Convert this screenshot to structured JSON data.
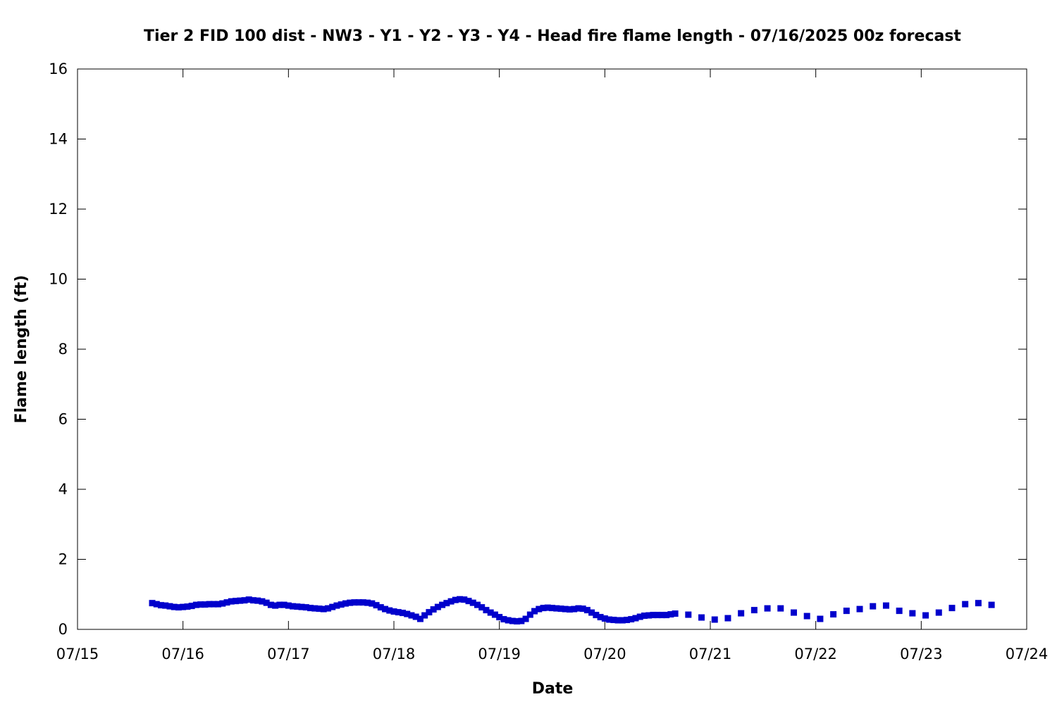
{
  "chart_data": {
    "type": "scatter",
    "title": "Tier 2 FID 100 dist - NW3 - Y1 - Y2 - Y3 - Y4 - Head fire flame length - 07/16/2025 00z forecast",
    "xlabel": "Date",
    "ylabel": "Flame length (ft)",
    "xlim": [
      "07/15",
      "07/24"
    ],
    "ylim": [
      0,
      16
    ],
    "x_ticks": [
      "07/15",
      "07/16",
      "07/17",
      "07/18",
      "07/19",
      "07/20",
      "07/21",
      "07/22",
      "07/23",
      "07/24"
    ],
    "y_ticks": [
      0,
      2,
      4,
      6,
      8,
      10,
      12,
      14,
      16
    ],
    "grid": false,
    "legend": "none",
    "marker_color": "#0000cc",
    "series": [
      {
        "points": [
          [
            "07/15 17:00",
            0.75
          ],
          [
            "07/15 18:00",
            0.72
          ],
          [
            "07/15 19:00",
            0.69
          ],
          [
            "07/15 20:00",
            0.68
          ],
          [
            "07/15 21:00",
            0.66
          ],
          [
            "07/15 22:00",
            0.64
          ],
          [
            "07/15 23:00",
            0.63
          ],
          [
            "07/16 00:00",
            0.64
          ],
          [
            "07/16 01:00",
            0.65
          ],
          [
            "07/16 02:00",
            0.67
          ],
          [
            "07/16 03:00",
            0.7
          ],
          [
            "07/16 04:00",
            0.71
          ],
          [
            "07/16 05:00",
            0.71
          ],
          [
            "07/16 06:00",
            0.72
          ],
          [
            "07/16 07:00",
            0.72
          ],
          [
            "07/16 08:00",
            0.72
          ],
          [
            "07/16 09:00",
            0.74
          ],
          [
            "07/16 10:00",
            0.77
          ],
          [
            "07/16 11:00",
            0.8
          ],
          [
            "07/16 12:00",
            0.81
          ],
          [
            "07/16 13:00",
            0.82
          ],
          [
            "07/16 14:00",
            0.83
          ],
          [
            "07/16 15:00",
            0.85
          ],
          [
            "07/16 16:00",
            0.83
          ],
          [
            "07/16 17:00",
            0.82
          ],
          [
            "07/16 18:00",
            0.8
          ],
          [
            "07/16 19:00",
            0.76
          ],
          [
            "07/16 20:00",
            0.7
          ],
          [
            "07/16 21:00",
            0.68
          ],
          [
            "07/16 22:00",
            0.7
          ],
          [
            "07/16 23:00",
            0.7
          ],
          [
            "07/17 00:00",
            0.68
          ],
          [
            "07/17 01:00",
            0.66
          ],
          [
            "07/17 02:00",
            0.65
          ],
          [
            "07/17 03:00",
            0.64
          ],
          [
            "07/17 04:00",
            0.63
          ],
          [
            "07/17 05:00",
            0.61
          ],
          [
            "07/17 06:00",
            0.6
          ],
          [
            "07/17 07:00",
            0.59
          ],
          [
            "07/17 08:00",
            0.58
          ],
          [
            "07/17 09:00",
            0.6
          ],
          [
            "07/17 10:00",
            0.64
          ],
          [
            "07/17 11:00",
            0.68
          ],
          [
            "07/17 12:00",
            0.71
          ],
          [
            "07/17 13:00",
            0.74
          ],
          [
            "07/17 14:00",
            0.76
          ],
          [
            "07/17 15:00",
            0.77
          ],
          [
            "07/17 16:00",
            0.77
          ],
          [
            "07/17 17:00",
            0.77
          ],
          [
            "07/17 18:00",
            0.76
          ],
          [
            "07/17 19:00",
            0.74
          ],
          [
            "07/17 20:00",
            0.69
          ],
          [
            "07/17 21:00",
            0.63
          ],
          [
            "07/17 22:00",
            0.58
          ],
          [
            "07/17 23:00",
            0.54
          ],
          [
            "07/18 00:00",
            0.51
          ],
          [
            "07/18 01:00",
            0.49
          ],
          [
            "07/18 02:00",
            0.47
          ],
          [
            "07/18 03:00",
            0.44
          ],
          [
            "07/18 04:00",
            0.4
          ],
          [
            "07/18 05:00",
            0.36
          ],
          [
            "07/18 06:00",
            0.3
          ],
          [
            "07/18 07:00",
            0.4
          ],
          [
            "07/18 08:00",
            0.49
          ],
          [
            "07/18 09:00",
            0.57
          ],
          [
            "07/18 10:00",
            0.64
          ],
          [
            "07/18 11:00",
            0.7
          ],
          [
            "07/18 12:00",
            0.75
          ],
          [
            "07/18 13:00",
            0.8
          ],
          [
            "07/18 14:00",
            0.84
          ],
          [
            "07/18 15:00",
            0.86
          ],
          [
            "07/18 16:00",
            0.85
          ],
          [
            "07/18 17:00",
            0.81
          ],
          [
            "07/18 18:00",
            0.76
          ],
          [
            "07/18 19:00",
            0.7
          ],
          [
            "07/18 20:00",
            0.63
          ],
          [
            "07/18 21:00",
            0.55
          ],
          [
            "07/18 22:00",
            0.48
          ],
          [
            "07/18 23:00",
            0.42
          ],
          [
            "07/19 00:00",
            0.35
          ],
          [
            "07/19 01:00",
            0.29
          ],
          [
            "07/19 02:00",
            0.26
          ],
          [
            "07/19 03:00",
            0.24
          ],
          [
            "07/19 04:00",
            0.23
          ],
          [
            "07/19 05:00",
            0.24
          ],
          [
            "07/19 06:00",
            0.3
          ],
          [
            "07/19 07:00",
            0.42
          ],
          [
            "07/19 08:00",
            0.52
          ],
          [
            "07/19 09:00",
            0.58
          ],
          [
            "07/19 10:00",
            0.61
          ],
          [
            "07/19 11:00",
            0.62
          ],
          [
            "07/19 12:00",
            0.61
          ],
          [
            "07/19 13:00",
            0.6
          ],
          [
            "07/19 14:00",
            0.59
          ],
          [
            "07/19 15:00",
            0.58
          ],
          [
            "07/19 16:00",
            0.57
          ],
          [
            "07/19 17:00",
            0.58
          ],
          [
            "07/19 18:00",
            0.6
          ],
          [
            "07/19 19:00",
            0.59
          ],
          [
            "07/19 20:00",
            0.55
          ],
          [
            "07/19 21:00",
            0.48
          ],
          [
            "07/19 22:00",
            0.41
          ],
          [
            "07/19 23:00",
            0.35
          ],
          [
            "07/20 00:00",
            0.31
          ],
          [
            "07/20 01:00",
            0.28
          ],
          [
            "07/20 02:00",
            0.27
          ],
          [
            "07/20 03:00",
            0.26
          ],
          [
            "07/20 04:00",
            0.26
          ],
          [
            "07/20 05:00",
            0.27
          ],
          [
            "07/20 06:00",
            0.29
          ],
          [
            "07/20 07:00",
            0.32
          ],
          [
            "07/20 08:00",
            0.36
          ],
          [
            "07/20 09:00",
            0.39
          ],
          [
            "07/20 10:00",
            0.4
          ],
          [
            "07/20 11:00",
            0.41
          ],
          [
            "07/20 12:00",
            0.41
          ],
          [
            "07/20 13:00",
            0.41
          ],
          [
            "07/20 14:00",
            0.41
          ],
          [
            "07/20 15:00",
            0.43
          ],
          [
            "07/20 16:00",
            0.45
          ],
          [
            "07/20 19:00",
            0.42
          ],
          [
            "07/20 22:00",
            0.34
          ],
          [
            "07/21 01:00",
            0.28
          ],
          [
            "07/21 04:00",
            0.32
          ],
          [
            "07/21 07:00",
            0.46
          ],
          [
            "07/21 10:00",
            0.55
          ],
          [
            "07/21 13:00",
            0.6
          ],
          [
            "07/21 16:00",
            0.6
          ],
          [
            "07/21 19:00",
            0.48
          ],
          [
            "07/21 22:00",
            0.38
          ],
          [
            "07/22 01:00",
            0.3
          ],
          [
            "07/22 04:00",
            0.43
          ],
          [
            "07/22 07:00",
            0.53
          ],
          [
            "07/22 10:00",
            0.58
          ],
          [
            "07/22 13:00",
            0.66
          ],
          [
            "07/22 16:00",
            0.68
          ],
          [
            "07/22 19:00",
            0.53
          ],
          [
            "07/22 22:00",
            0.46
          ],
          [
            "07/23 01:00",
            0.4
          ],
          [
            "07/23 04:00",
            0.48
          ],
          [
            "07/23 07:00",
            0.61
          ],
          [
            "07/23 10:00",
            0.72
          ],
          [
            "07/23 13:00",
            0.75
          ],
          [
            "07/23 16:00",
            0.7
          ]
        ]
      }
    ]
  }
}
